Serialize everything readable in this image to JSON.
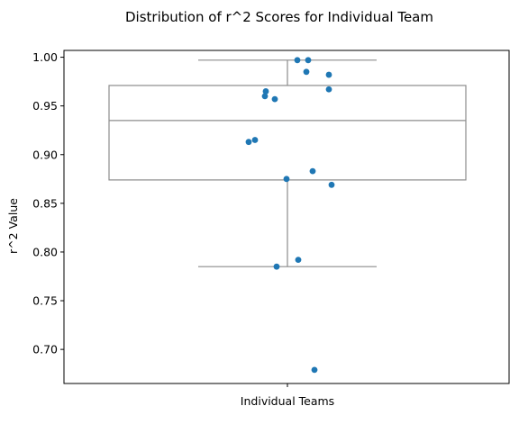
{
  "chart_data": {
    "type": "box+strip",
    "title": "Distribution of r^2 Scores for Individual Team",
    "xlabel": "",
    "ylabel": "r^2 Value",
    "categories": [
      "Individual Teams"
    ],
    "ylim": [
      0.665,
      1.007
    ],
    "yticks": [
      0.7,
      0.75,
      0.8,
      0.85,
      0.9,
      0.95,
      1.0
    ],
    "ytick_labels": [
      "0.70",
      "0.75",
      "0.80",
      "0.85",
      "0.90",
      "0.95",
      "1.00"
    ],
    "grid": false,
    "box": {
      "whisker_low": 0.785,
      "q1": 0.874,
      "median": 0.935,
      "q3": 0.971,
      "whisker_high": 0.997,
      "color": "#8c8c8c"
    },
    "points": {
      "color": "#1f77b4",
      "values": [
        0.997,
        0.997,
        0.985,
        0.982,
        0.967,
        0.965,
        0.96,
        0.957,
        0.915,
        0.913,
        0.883,
        0.875,
        0.869,
        0.792,
        0.785,
        0.679
      ]
    }
  }
}
